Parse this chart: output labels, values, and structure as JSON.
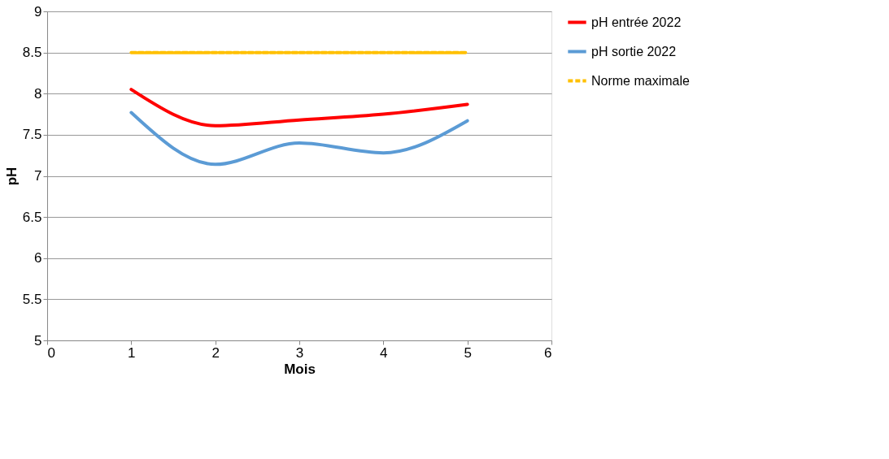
{
  "chart_data": {
    "type": "line",
    "xlabel": "Mois",
    "ylabel": "pH",
    "x": [
      1,
      2,
      3,
      4,
      5
    ],
    "series": [
      {
        "name": "pH entrée 2022",
        "color": "#ff0000",
        "values": [
          8.05,
          7.61,
          7.68,
          7.75,
          7.87
        ]
      },
      {
        "name": "pH sortie 2022",
        "color": "#5b9bd5",
        "values": [
          7.77,
          7.14,
          7.4,
          7.28,
          7.67
        ]
      },
      {
        "name": "Norme maximale",
        "color": "#ffc000",
        "values": [
          8.5,
          8.5,
          8.5,
          8.5,
          8.5
        ],
        "line_style": "dashed"
      }
    ],
    "xlim": [
      0,
      6
    ],
    "xticks": [
      0,
      1,
      2,
      3,
      4,
      5,
      6
    ],
    "ylim": [
      5,
      9
    ],
    "yticks": [
      5,
      5.5,
      6,
      6.5,
      7,
      7.5,
      8,
      8.5,
      9
    ],
    "grid": "y",
    "legend": "right",
    "marker": "none",
    "line_style": "solid"
  }
}
